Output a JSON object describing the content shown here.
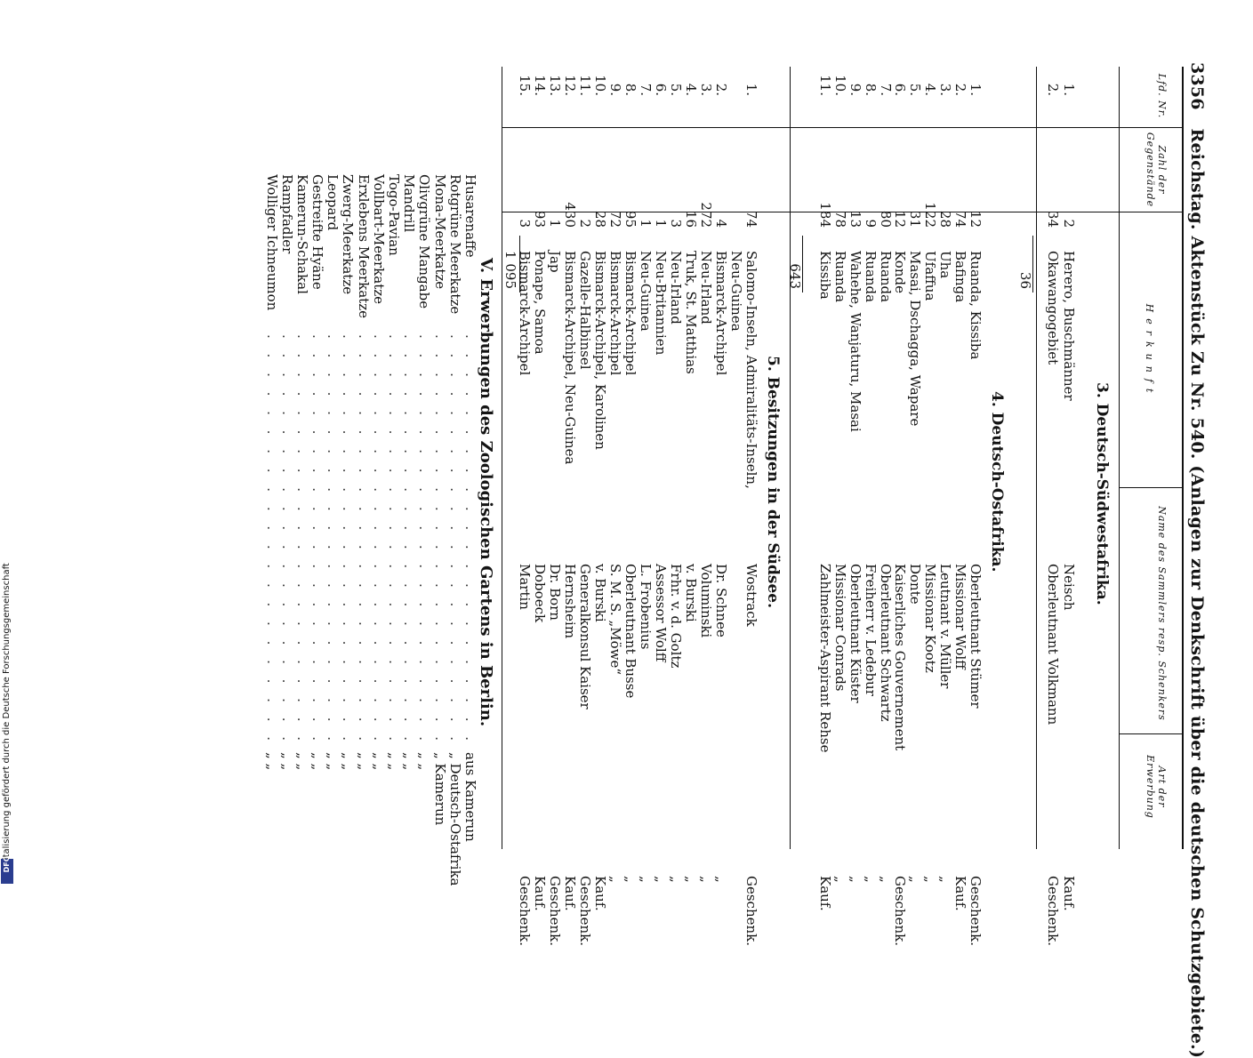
{
  "header": {
    "page_number": "3356",
    "title": "Reichstag. Aktenstück Zu Nr. 540. (Anlagen zur Denkschrift über die deutschen Schutzgebiete.)"
  },
  "columns": {
    "nr": "Lfd. Nr.",
    "zahl": "Zahl der Gegenstände",
    "herkunft": "Herkunft",
    "name": "Name des Sammlers resp. Schenkers",
    "art": "Art der Erwerbung"
  },
  "sections": {
    "s3": {
      "title": "3. Deutsch-Südwestafrika.",
      "rows": [
        {
          "nr": "1.",
          "zahl": "2",
          "herkunft": "Herero, Buschmänner",
          "name": "Neisch",
          "art": "Kauf."
        },
        {
          "nr": "2.",
          "zahl": "34",
          "herkunft": "Okawangogebiet",
          "name": "Oberleutnant Volkmann",
          "art": "Geschenk."
        }
      ],
      "sum": "36"
    },
    "s4": {
      "title": "4. Deutsch-Ostafrika.",
      "rows": [
        {
          "nr": "1.",
          "zahl": "12",
          "herkunft": "Ruanda, Kissiba",
          "name": "Oberleutnant Stümer",
          "art": "Geschenk."
        },
        {
          "nr": "2.",
          "zahl": "74",
          "herkunft": "Bafinga",
          "name": "Missionar Wolff",
          "art": "Kauf."
        },
        {
          "nr": "3.",
          "zahl": "28",
          "herkunft": "Uha",
          "name": "Leutnant v. Müller",
          "art": "„"
        },
        {
          "nr": "4.",
          "zahl": "122",
          "herkunft": "Ufaffua",
          "name": "Missionar Kootz",
          "art": "„"
        },
        {
          "nr": "5.",
          "zahl": "31",
          "herkunft": "Masai, Dschagga, Wapare",
          "name": "Donte",
          "art": "„"
        },
        {
          "nr": "6.",
          "zahl": "12",
          "herkunft": "Konde",
          "name": "Kaiserliches Gouvernement",
          "art": "Geschenk."
        },
        {
          "nr": "7.",
          "zahl": "80",
          "herkunft": "Ruanda",
          "name": "Oberleutnant Schwartz",
          "art": "„"
        },
        {
          "nr": "8.",
          "zahl": "9",
          "herkunft": "Ruanda",
          "name": "Freiherr v. Ledebur",
          "art": "„"
        },
        {
          "nr": "9.",
          "zahl": "13",
          "herkunft": "Wahehe, Wanjaturu, Masai",
          "name": "Oberleutnant Küster",
          "art": "„"
        },
        {
          "nr": "10.",
          "zahl": "78",
          "herkunft": "Ruanda",
          "name": "Missionar Conrads",
          "art": "„"
        },
        {
          "nr": "11.",
          "zahl": "184",
          "herkunft": "Kissiba",
          "name": "Zahlmeister-Aspirant Rehse",
          "art": "Kauf."
        }
      ],
      "sum": "643"
    },
    "s5": {
      "title": "5. Besitzungen in der Südsee.",
      "rows": [
        {
          "nr": "1.",
          "zahl": "74",
          "herkunft": "Salomo-Inseln, Admiralitäts-Inseln,",
          "name": "Wostrack",
          "art": "Geschenk."
        },
        {
          "nr": "",
          "zahl": "",
          "herkunft": "Neu-Guinea",
          "name": "",
          "art": ""
        },
        {
          "nr": "2.",
          "zahl": "4",
          "herkunft": "Bismarck-Archipel",
          "name": "Dr. Schnee",
          "art": "„"
        },
        {
          "nr": "3.",
          "zahl": "272",
          "herkunft": "Neu-Irland",
          "name": "Voluminski",
          "art": "„"
        },
        {
          "nr": "4.",
          "zahl": "16",
          "herkunft": "Truk, St. Matthias",
          "name": "v. Burski",
          "art": "„"
        },
        {
          "nr": "5.",
          "zahl": "3",
          "herkunft": "Neu-Irland",
          "name": "Frhr. v. d. Goltz",
          "art": "„"
        },
        {
          "nr": "6.",
          "zahl": "1",
          "herkunft": "Neu-Britannien",
          "name": "Assessor Wolff",
          "art": "„"
        },
        {
          "nr": "7.",
          "zahl": "1",
          "herkunft": "Neu-Guinea",
          "name": "L. Frobenius",
          "art": "„"
        },
        {
          "nr": "8.",
          "zahl": "95",
          "herkunft": "Bismarck-Archipel",
          "name": "Oberleutnant Busse",
          "art": "„"
        },
        {
          "nr": "9.",
          "zahl": "72",
          "herkunft": "Bismarck-Archipel",
          "name": "S. M. S. „Möwe“",
          "art": "„"
        },
        {
          "nr": "10.",
          "zahl": "28",
          "herkunft": "Bismarck-Archipel, Karolinen",
          "name": "v. Burski",
          "art": "Kauf."
        },
        {
          "nr": "11.",
          "zahl": "2",
          "herkunft": "Gazelle-Halbinsel",
          "name": "Generalkonsul Kaiser",
          "art": "Geschenk."
        },
        {
          "nr": "12.",
          "zahl": "430",
          "herkunft": "Bismarck-Archipel, Neu-Guinea",
          "name": "Hernsheim",
          "art": "Kauf."
        },
        {
          "nr": "13.",
          "zahl": "1",
          "herkunft": "Jap",
          "name": "Dr. Born",
          "art": "Geschenk."
        },
        {
          "nr": "14.",
          "zahl": "93",
          "herkunft": "Ponape, Samoa",
          "name": "Doboeck",
          "art": "Kauf."
        },
        {
          "nr": "15.",
          "zahl": "3",
          "herkunft": "Bismarck-Archipel",
          "name": "Martin",
          "art": "Geschenk."
        }
      ],
      "sum": "1 095"
    }
  },
  "section_v": {
    "title": "V. Erwerbungen des Zoologischen Gartens in Berlin.",
    "items": [
      {
        "name": "Husarenaffe",
        "from": "aus Kamerun"
      },
      {
        "name": "Rotgrüne Meerkatze",
        "from": "„ Deutsch-Ostafrika"
      },
      {
        "name": "Mona-Meerkatze",
        "from": "„ Kamerun"
      },
      {
        "name": "Olivgrüne Mangabe",
        "from": "„ „"
      },
      {
        "name": "Mandrill",
        "from": "„ „"
      },
      {
        "name": "Togo-Pavian",
        "from": "„ „"
      },
      {
        "name": "Vollbart-Meerkatze",
        "from": "„ „"
      },
      {
        "name": "Erxlebens Meerkatze",
        "from": "„ „"
      },
      {
        "name": "Zwerg-Meerkatze",
        "from": "„ „"
      },
      {
        "name": "Leopard",
        "from": "„ „"
      },
      {
        "name": "Gestreifte Hyäne",
        "from": "„ „"
      },
      {
        "name": "Kamerun-Schakal",
        "from": "„ „"
      },
      {
        "name": "Rampfadler",
        "from": "„ „"
      },
      {
        "name": "Wolliger Ichneumon",
        "from": "„ „"
      }
    ]
  },
  "footer": {
    "text": "Digitalisierung gefördert durch die Deutsche Forschungsgemeinschaft",
    "logo": "DFG"
  }
}
